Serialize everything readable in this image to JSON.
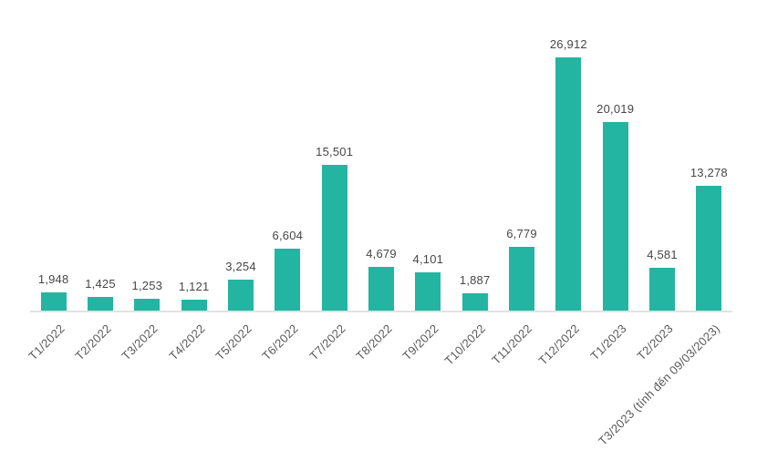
{
  "chart_data": {
    "type": "bar",
    "title": "",
    "xlabel": "",
    "ylabel": "",
    "categories": [
      "T1/2022",
      "T2/2022",
      "T3/2022",
      "T4/2022",
      "T5/2022",
      "T6/2022",
      "T7/2022",
      "T8/2022",
      "T9/2022",
      "T10/2022",
      "T11/2022",
      "T12/2022",
      "T1/2023",
      "T2/2023",
      "T3/2023 (tính đến 09/03/2023)"
    ],
    "values": [
      1948,
      1425,
      1253,
      1121,
      3254,
      6604,
      15501,
      4679,
      4101,
      1887,
      6779,
      26912,
      20019,
      4581,
      13278
    ],
    "value_labels": [
      "1,948",
      "1,425",
      "1,253",
      "1,121",
      "3,254",
      "6,604",
      "15,501",
      "4,679",
      "4,101",
      "1,887",
      "6,779",
      "26,912",
      "20,019",
      "4,581",
      "13,278"
    ],
    "ylim": [
      0,
      29000
    ],
    "grid": false,
    "legend": false,
    "x_label_rotation_deg": -45,
    "colors": {
      "bar": "#23b5a2",
      "axis_line": "#e2e2e2",
      "value_label_text": "#474747",
      "category_label_text": "#595959",
      "background": "#ffffff"
    }
  }
}
